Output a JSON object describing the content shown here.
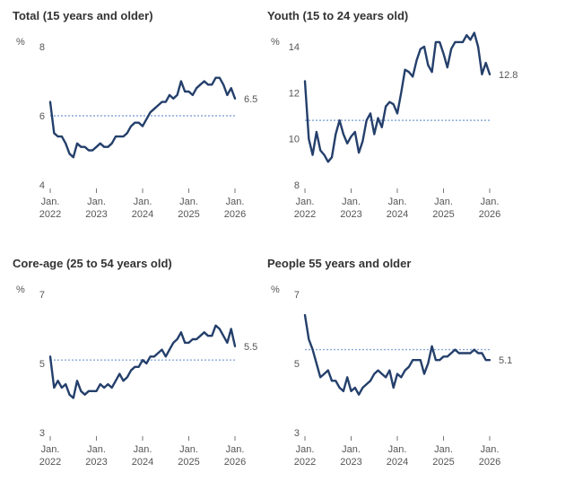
{
  "chart_data": [
    {
      "type": "line",
      "title": "Total (15 years and older)",
      "ylabel": "%",
      "ylim": [
        4,
        8
      ],
      "yticks": [
        4,
        6,
        8
      ],
      "ref": 6.0,
      "end_label": "6.5",
      "xticks": [
        {
          "x": 2022.0,
          "month": "Jan.",
          "year": "2022"
        },
        {
          "x": 2023.0,
          "month": "Jan.",
          "year": "2023"
        },
        {
          "x": 2024.0,
          "month": "Jan.",
          "year": "2024"
        },
        {
          "x": 2025.0,
          "month": "Jan.",
          "year": "2025"
        },
        {
          "x": 2026.0,
          "month": "Jan.",
          "year": "2026"
        }
      ],
      "xlim": [
        2022,
        2026
      ],
      "x0": 2022.0,
      "values": [
        6.4,
        5.5,
        5.4,
        5.4,
        5.2,
        4.9,
        4.8,
        5.2,
        5.1,
        5.1,
        5.0,
        5.0,
        5.1,
        5.2,
        5.1,
        5.1,
        5.2,
        5.4,
        5.4,
        5.4,
        5.5,
        5.7,
        5.8,
        5.8,
        5.7,
        5.9,
        6.1,
        6.2,
        6.3,
        6.4,
        6.4,
        6.6,
        6.5,
        6.6,
        7.0,
        6.7,
        6.7,
        6.6,
        6.8,
        6.9,
        7.0,
        6.9,
        6.9,
        7.1,
        7.1,
        6.9,
        6.6,
        6.8,
        6.5
      ]
    },
    {
      "type": "line",
      "title": "Youth (15 to 24 years old)",
      "ylabel": "%",
      "ylim": [
        8,
        14
      ],
      "yticks": [
        8,
        10,
        12,
        14
      ],
      "ref": 10.8,
      "end_label": "12.8",
      "xticks": [
        {
          "x": 2022.0,
          "month": "Jan.",
          "year": "2022"
        },
        {
          "x": 2023.0,
          "month": "Jan.",
          "year": "2023"
        },
        {
          "x": 2024.0,
          "month": "Jan.",
          "year": "2024"
        },
        {
          "x": 2025.0,
          "month": "Jan.",
          "year": "2025"
        },
        {
          "x": 2026.0,
          "month": "Jan.",
          "year": "2026"
        }
      ],
      "xlim": [
        2022,
        2026
      ],
      "x0": 2022.0,
      "values": [
        12.5,
        10.0,
        9.3,
        10.3,
        9.5,
        9.3,
        9.0,
        9.2,
        10.2,
        10.8,
        10.2,
        9.8,
        10.1,
        10.3,
        9.4,
        9.9,
        10.8,
        11.1,
        10.2,
        10.9,
        10.5,
        11.4,
        11.6,
        11.5,
        11.1,
        12.0,
        13.0,
        12.9,
        12.7,
        13.4,
        13.9,
        14.0,
        13.2,
        12.9,
        14.2,
        14.2,
        13.7,
        13.1,
        13.9,
        14.2,
        14.2,
        14.2,
        14.5,
        14.3,
        14.6,
        14.0,
        12.8,
        13.3,
        12.8
      ]
    },
    {
      "type": "line",
      "title": "Core-age (25 to 54 years old)",
      "ylabel": "%",
      "ylim": [
        3,
        7
      ],
      "yticks": [
        3,
        5,
        7
      ],
      "ref": 5.1,
      "end_label": "5.5",
      "xticks": [
        {
          "x": 2022.0,
          "month": "Jan.",
          "year": "2022"
        },
        {
          "x": 2023.0,
          "month": "Jan.",
          "year": "2023"
        },
        {
          "x": 2024.0,
          "month": "Jan.",
          "year": "2024"
        },
        {
          "x": 2025.0,
          "month": "Jan.",
          "year": "2025"
        },
        {
          "x": 2026.0,
          "month": "Jan.",
          "year": "2026"
        }
      ],
      "xlim": [
        2022,
        2026
      ],
      "x0": 2022.0,
      "values": [
        5.2,
        4.3,
        4.5,
        4.3,
        4.4,
        4.1,
        4.0,
        4.5,
        4.2,
        4.1,
        4.2,
        4.2,
        4.2,
        4.4,
        4.3,
        4.4,
        4.3,
        4.5,
        4.7,
        4.5,
        4.6,
        4.8,
        4.9,
        4.9,
        5.1,
        5.0,
        5.2,
        5.2,
        5.3,
        5.4,
        5.2,
        5.4,
        5.6,
        5.7,
        5.9,
        5.6,
        5.6,
        5.7,
        5.7,
        5.8,
        5.9,
        5.8,
        5.8,
        6.1,
        6.0,
        5.8,
        5.6,
        6.0,
        5.5
      ]
    },
    {
      "type": "line",
      "title": "People 55 years and older",
      "ylabel": "%",
      "ylim": [
        3,
        7
      ],
      "yticks": [
        3,
        5,
        7
      ],
      "ref": 5.4,
      "end_label": "5.1",
      "xticks": [
        {
          "x": 2022.0,
          "month": "Jan.",
          "year": "2022"
        },
        {
          "x": 2023.0,
          "month": "Jan.",
          "year": "2023"
        },
        {
          "x": 2024.0,
          "month": "Jan.",
          "year": "2024"
        },
        {
          "x": 2025.0,
          "month": "Jan.",
          "year": "2025"
        },
        {
          "x": 2026.0,
          "month": "Jan.",
          "year": "2026"
        }
      ],
      "xlim": [
        2022,
        2026
      ],
      "x0": 2022.0,
      "values": [
        6.4,
        5.7,
        5.4,
        5.0,
        4.6,
        4.7,
        4.8,
        4.5,
        4.5,
        4.3,
        4.2,
        4.6,
        4.2,
        4.3,
        4.1,
        4.3,
        4.4,
        4.5,
        4.7,
        4.8,
        4.7,
        4.6,
        4.8,
        4.3,
        4.7,
        4.6,
        4.8,
        4.9,
        5.1,
        5.1,
        5.1,
        4.7,
        5.0,
        5.5,
        5.1,
        5.1,
        5.2,
        5.2,
        5.3,
        5.4,
        5.3,
        5.3,
        5.3,
        5.3,
        5.4,
        5.3,
        5.3,
        5.1,
        5.1
      ]
    }
  ],
  "colors": {
    "line": "#243f6b",
    "reference": "#8aa9d9",
    "text": "#555555",
    "title": "#333333"
  }
}
